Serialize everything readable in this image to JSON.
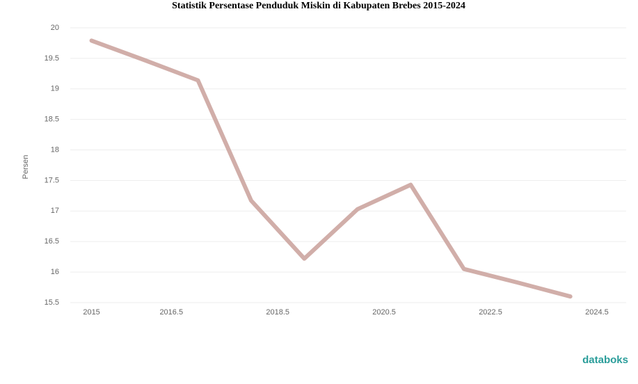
{
  "chart_data": {
    "type": "line",
    "title": "Statistik Persentase Penduduk Miskin di Kabupaten Brebes 2015-2024",
    "y_label": "Persen",
    "x": [
      2015,
      2016,
      2017,
      2018,
      2019,
      2020,
      2021,
      2022,
      2023,
      2024
    ],
    "series": [
      {
        "name": "Persentase Penduduk Miskin",
        "color": "#c9a09a",
        "values": [
          19.79,
          19.47,
          19.14,
          17.17,
          16.22,
          17.03,
          17.43,
          16.05,
          15.83,
          15.6
        ]
      }
    ],
    "xlim": [
      2014.6,
      2025.05
    ],
    "xticks": [
      2015,
      2016.5,
      2018.5,
      2020.5,
      2022.5,
      2024.5
    ],
    "ylim": [
      15.5,
      20
    ],
    "yticks": [
      15.5,
      16,
      16.5,
      17,
      17.5,
      18,
      18.5,
      19,
      19.5,
      20
    ],
    "grid": true,
    "source": "databoks"
  }
}
